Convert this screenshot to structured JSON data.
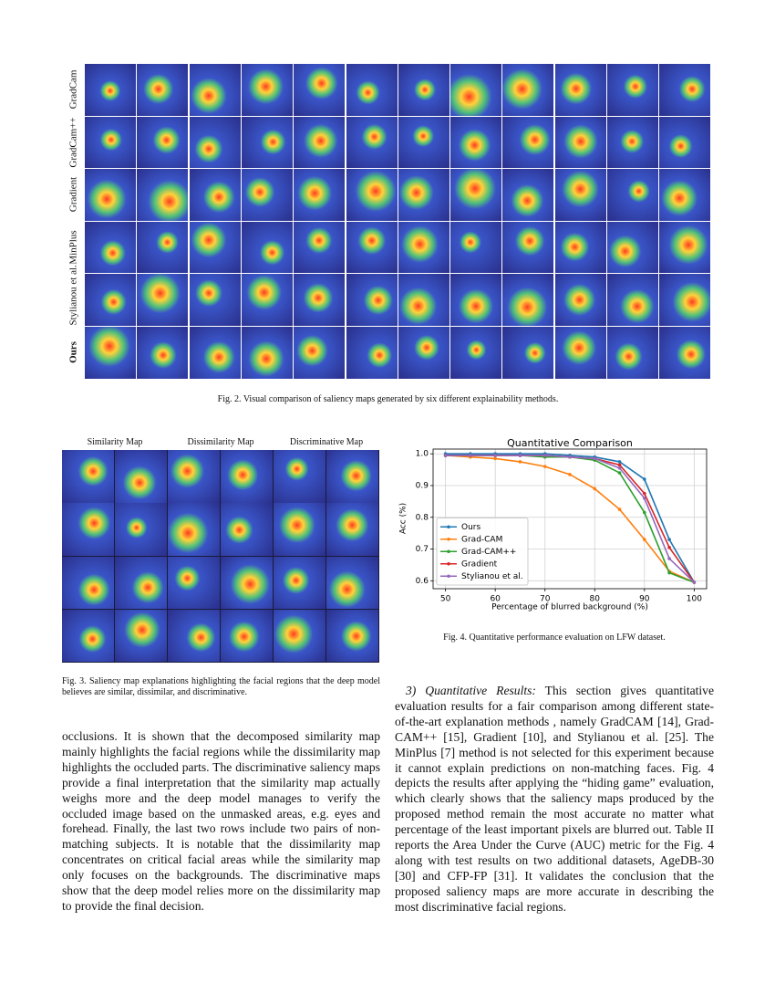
{
  "figure2": {
    "row_labels": [
      "GradCam",
      "GradCam++",
      "Gradient",
      "MinPlus",
      "Stylianou et al.",
      "Ours"
    ],
    "caption": "Fig. 2.  Visual comparison of saliency maps generated by six different explainability methods."
  },
  "figure3": {
    "column_labels": [
      "Similarity Map",
      "Dissimilarity Map",
      "Discriminative Map"
    ],
    "caption": "Fig. 3.  Saliency map explanations highlighting the facial regions that the deep model believes are similar, dissimilar, and discriminative."
  },
  "figure4": {
    "caption": "Fig. 4.  Quantitative performance evaluation on LFW dataset.",
    "chart_data": {
      "type": "line",
      "title": "Quantitative Comparison",
      "x_label": "Percentage of blurred background (%)",
      "y_label": "Acc (%)",
      "x": [
        50,
        55,
        60,
        65,
        70,
        75,
        80,
        85,
        90,
        95,
        100
      ],
      "series": [
        {
          "name": "Ours",
          "color": "#1f77b4",
          "values": [
            1.0,
            1.0,
            1.0,
            1.0,
            1.0,
            0.995,
            0.99,
            0.975,
            0.92,
            0.73,
            0.595
          ]
        },
        {
          "name": "Grad-CAM",
          "color": "#ff7f0e",
          "values": [
            0.995,
            0.99,
            0.985,
            0.975,
            0.96,
            0.935,
            0.89,
            0.825,
            0.73,
            0.63,
            0.595
          ]
        },
        {
          "name": "Grad-CAM++",
          "color": "#2ca02c",
          "values": [
            0.995,
            0.995,
            0.995,
            0.995,
            0.99,
            0.99,
            0.98,
            0.94,
            0.815,
            0.625,
            0.595
          ]
        },
        {
          "name": "Gradient",
          "color": "#d62728",
          "values": [
            0.995,
            0.995,
            0.995,
            0.995,
            0.995,
            0.99,
            0.985,
            0.965,
            0.875,
            0.705,
            0.595
          ]
        },
        {
          "name": "Stylianou et al.",
          "color": "#9467bd",
          "values": [
            0.995,
            0.995,
            0.995,
            0.995,
            0.995,
            0.99,
            0.985,
            0.955,
            0.86,
            0.67,
            0.595
          ]
        }
      ],
      "xlim": [
        47.5,
        102.5
      ],
      "ylim": [
        0.575,
        1.015
      ],
      "xticks": [
        50,
        60,
        70,
        80,
        90,
        100
      ],
      "yticks": [
        0.6,
        0.7,
        0.8,
        0.9,
        {
          "value": 1,
          "label": "1.0"
        }
      ],
      "grid": true,
      "legend": "lower left"
    }
  },
  "left_text": "occlusions. It is shown that the decomposed similarity map mainly highlights the facial regions while the dissimilarity map highlights the occluded parts. The discriminative saliency maps provide a final interpretation that the similarity map actually weighs more and the deep model manages to verify the occluded image based on the unmasked areas, e.g. eyes and forehead. Finally, the last two rows include two pairs of non-matching subjects. It is notable that the dissimilarity map concentrates on critical facial areas while the similarity map only focuses on the backgrounds. The discriminative maps show that the deep model relies more on the dissimilarity map to provide the final decision.",
  "right_text": {
    "heading": "3) Quantitative Results:",
    "body": "This section gives quantitative evaluation results for a fair comparison among different state-of-the-art explanation methods , namely GradCAM [14], Grad-CAM++ [15], Gradient [10], and Stylianou et al. [25]. The MinPlus [7] method is not selected for this experiment because it cannot explain predictions on non-matching faces. Fig. 4 depicts the results after applying the “hiding game” evaluation, which clearly shows that the saliency maps produced by the proposed method remain the most accurate no matter what percentage of the least important pixels are blurred out. Table II reports the Area Under the Curve (AUC) metric for the Fig. 4 along with test results on two additional datasets, AgeDB-30 [30] and CFP-FP [31]. It validates the conclusion that the proposed saliency maps are more accurate in describing the most discriminative facial regions."
  }
}
